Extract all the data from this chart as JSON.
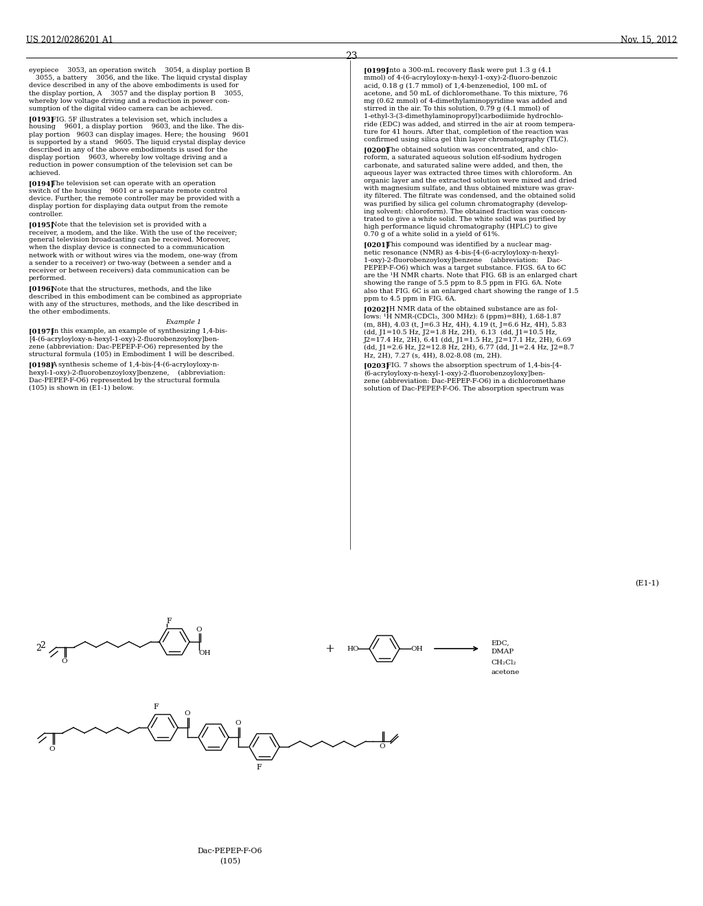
{
  "bg_color": "#ffffff",
  "header_left": "US 2012/0286201 A1",
  "header_right": "Nov. 15, 2012",
  "page_number": "23",
  "left_col_paragraphs": [
    {
      "tag": "",
      "text": "eyepiece  3053, an operation switch  3054, a display portion B\n 3055, a battery  3056, and the like. The liquid crystal display\ndevice described in any of the above embodiments is used for\nthe display portion, A  3057 and the display portion B  3055,\nwhereby low voltage driving and a reduction in power con-\nsumption of the digital video camera can be achieved."
    },
    {
      "tag": "[0193]",
      "text": "FIG. 5F illustrates a television set, which includes a\nhousing  9601, a display portion  9603, and the like. The dis-\nplay portion 9603 can display images. Here; the housing 9601\nis supported by a stand 9605. The liquid crystal display device\ndescribed in any of the above embodiments is used for the\ndisplay portion  9603, whereby low voltage driving and a\nreduction in power consumption of the television set can be\nachieved."
    },
    {
      "tag": "[0194]",
      "text": "The television set can operate with an operation\nswitch of the housing  9601 or a separate remote control\ndevice. Further, the remote controller may be provided with a\ndisplay portion for displaying data output from the remote\ncontroller."
    },
    {
      "tag": "[0195]",
      "text": "Note that the television set is provided with a\nreceiver, a modem, and the like. With the use of the receiver;\ngeneral television broadcasting can be received. Moreover,\nwhen the display device is connected to a communication\nnetwork with or without wires via the modem, one-way (from\na sender to a receiver) or two-way (between a sender and a\nreceiver or between receivers) data communication can be\nperformed."
    },
    {
      "tag": "[0196]",
      "text": "Note that the structures, methods, and the like\ndescribed in this embodiment can be combined as appropriate\nwith any of the structures, methods, and the like described in\nthe other embodiments."
    },
    {
      "tag": "Example 1",
      "center": true,
      "text": ""
    },
    {
      "tag": "[0197]",
      "text": "In this example, an example of synthesizing 1,4-bis-\n[4-(6-acryloyloxy-n-hexyl-1-oxy)-2-fluorobenzoyloxy]ben-\nzene (abbreviation: Dac-PEPEP-F-O6) represented by the\nstructural formula (105) in Embodiment 1 will be described."
    },
    {
      "tag": "[0198]",
      "text": "A synthesis scheme of 1,4-bis-[4-(6-acryloyloxy-n-\nhexyl-1-oxy)-2-fluorobenzoyloxy]benzene,    (abbreviation:\nDac-PEPEP-F-O6) represented by the structural formula\n(105) is shown in (E1-1) below."
    }
  ],
  "right_col_paragraphs": [
    {
      "tag": "[0199]",
      "text": "Into a 300-mL recovery flask were put 1.3 g (4.1\nmmol) of 4-(6-acryloyloxy-n-hexyl-1-oxy)-2-fluoro-benzoic\nacid, 0.18 g (1.7 mmol) of 1,4-benzenediol, 100 mL of\nacetone, and 50 mL of dichloromethane. To this mixture, 76\nmg (0.62 mmol) of 4-dimethylaminopyridine was added and\nstirred in the air. To this solution, 0.79 g (4.1 mmol) of\n1-ethyl-3-(3-dimethylaminopropyl)carbodiimide hydrochlo-\nride (EDC) was added, and stirred in the air at room tempera-\nture for 41 hours. After that, completion of the reaction was\nconfirmed using silica gel thin layer chromatography (TLC)."
    },
    {
      "tag": "[0200]",
      "text": "The obtained solution was concentrated, and chlo-\nroform, a saturated aqueous solution elf-sodium hydrogen\ncarbonate, and saturated saline were added, and then, the\naqueous layer was extracted three times with chloroform. An\norganic layer and the extracted solution were mixed and dried\nwith magnesium sulfate, and thus obtained mixture was grav-\nity filtered. The filtrate was condensed, and the obtained solid\nwas purified by silica gel column chromatography (develop-\ning solvent: chloroform). The obtained fraction was concen-\ntrated to give a white solid. The white solid was purified by\nhigh performance liquid chromatography (HPLC) to give\n0.70 g of a white solid in a yield of 61%."
    },
    {
      "tag": "[0201]",
      "text": "This compound was identified by a nuclear mag-\nnetic resonance (NMR) as 4-bis-[4-(6-acryloyloxy-n-hexyl-\n1-oxy)-2-fluorobenzoyloxy]benzene    (abbreviation:    Dac-\nPEPEP-F-O6) which was a target substance. FIGS. 6A to 6C\nare the ¹H NMR charts. Note that FIG. 6B is an enlarged chart\nshowing the range of 5.5 ppm to 8.5 ppm in FIG. 6A. Note\nalso that FIG. 6C is an enlarged chart showing the range of 1.5\nppm to 4.5 ppm in FIG. 6A."
    },
    {
      "tag": "[0202]",
      "text": "¹H NMR data of the obtained substance are as fol-\nlows: ¹H NMR-(CDCl₃, 300 MHz): δ (ppm)=8H), 1.68-1.87\n(m, 8H), 4.03 (t, J=6.3 Hz, 4H), 4.19 (t, J=6.6 Hz, 4H), 5.83\n(dd, J1=10.5 Hz, J2=1.8 Hz, 2H),  6.13  (dd, J1=10.5 Hz,\nJ2=17.4 Hz, 2H), 6.41 (dd, J1=1.5 Hz, J2=17.1 Hz, 2H), 6.69\n(dd, J1=2.6 Hz, J2=12.8 Hz, 2H), 6.77 (dd, J1=2.4 Hz, J2=8.7\nHz, 2H), 7.27 (s, 4H), 8.02-8.08 (m, 2H)."
    },
    {
      "tag": "[0203]",
      "text": "FIG. 7 shows the absorption spectrum of 1,4-bis-[4-\n(6-acryloyloxy-n-hexyl-1-oxy)-2-fluorobenzoyloxy]ben-\nzene (abbreviation: Dac-PEPEP-F-O6) in a dichloromethane\nsolution of Dac-PEPEP-F-O6. The absorption spectrum was"
    }
  ],
  "equation_label": "(E1-1)",
  "dac_label": "Dac-PEPEP-F-O6",
  "compound_label": "(105)"
}
